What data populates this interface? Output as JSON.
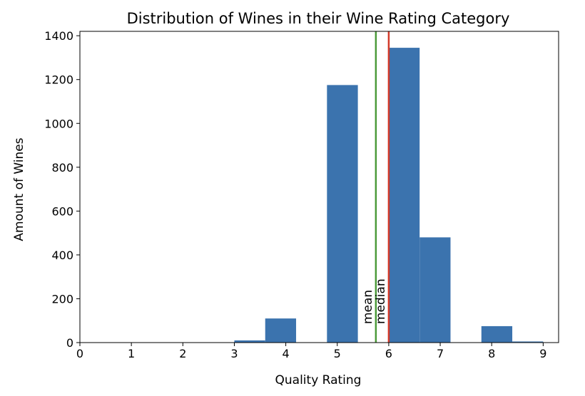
{
  "chart_data": {
    "type": "bar",
    "title": "Distribution of Wines in their Wine Rating Category",
    "xlabel": "Quality Rating",
    "ylabel": "Amount of Wines",
    "xlim": [
      0,
      9.3
    ],
    "ylim": [
      0,
      1420
    ],
    "x_ticks": [
      "0",
      "1",
      "2",
      "3",
      "4",
      "5",
      "6",
      "7",
      "8",
      "9"
    ],
    "y_ticks": [
      "0",
      "200",
      "400",
      "600",
      "800",
      "1000",
      "1200",
      "1400"
    ],
    "bins": [
      {
        "start": 3.0,
        "end": 3.6,
        "value": 10
      },
      {
        "start": 3.6,
        "end": 4.2,
        "value": 110
      },
      {
        "start": 4.8,
        "end": 5.4,
        "value": 1175
      },
      {
        "start": 6.0,
        "end": 6.6,
        "value": 1345
      },
      {
        "start": 6.6,
        "end": 7.2,
        "value": 480
      },
      {
        "start": 7.8,
        "end": 8.4,
        "value": 75
      },
      {
        "start": 8.4,
        "end": 9.0,
        "value": 5
      }
    ],
    "bar_color": "#3b73ae",
    "lines": [
      {
        "label": "mean",
        "x": 5.75,
        "color": "#4c9a3a"
      },
      {
        "label": "median",
        "x": 6.0,
        "color": "#d23a2a"
      }
    ],
    "grid": false,
    "legend": false
  }
}
